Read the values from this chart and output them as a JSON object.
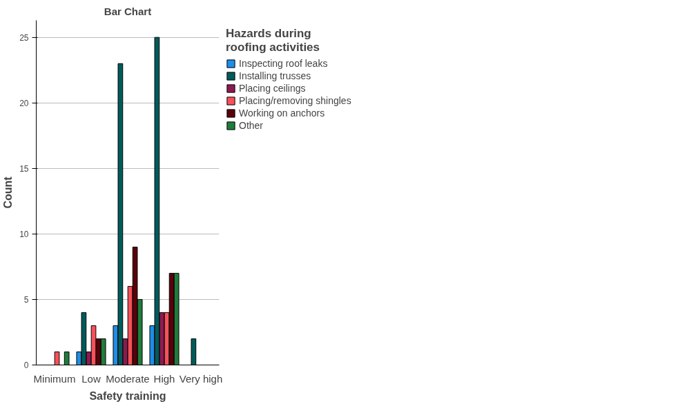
{
  "chart_data": {
    "type": "bar",
    "title": "Bar Chart",
    "xlabel": "Safety training",
    "ylabel": "Count",
    "legend_title": "Hazards during\nroofing activities",
    "categories": [
      "Minimum",
      "Low",
      "Moderate",
      "High",
      "Very high"
    ],
    "series": [
      {
        "name": "Inspecting roof leaks",
        "color": "#1e8ee6",
        "values": [
          null,
          1,
          3,
          3,
          null
        ]
      },
      {
        "name": "Installing trusses",
        "color": "#005b5b",
        "values": [
          null,
          4,
          23,
          25,
          2
        ]
      },
      {
        "name": "Placing ceilings",
        "color": "#8c1a50",
        "values": [
          null,
          1,
          2,
          4,
          null
        ]
      },
      {
        "name": "Placing/removing shingles",
        "color": "#f9505a",
        "values": [
          1,
          3,
          6,
          4,
          null
        ]
      },
      {
        "name": "Working on anchors",
        "color": "#5a000a",
        "values": [
          null,
          2,
          9,
          7,
          null
        ]
      },
      {
        "name": "Other",
        "color": "#1f7d3b",
        "values": [
          1,
          2,
          5,
          7,
          null
        ]
      }
    ],
    "ylim": [
      0,
      26.3
    ],
    "yticks": [
      0,
      5,
      10,
      15,
      20,
      25
    ],
    "grid": "y",
    "legend": "right"
  }
}
